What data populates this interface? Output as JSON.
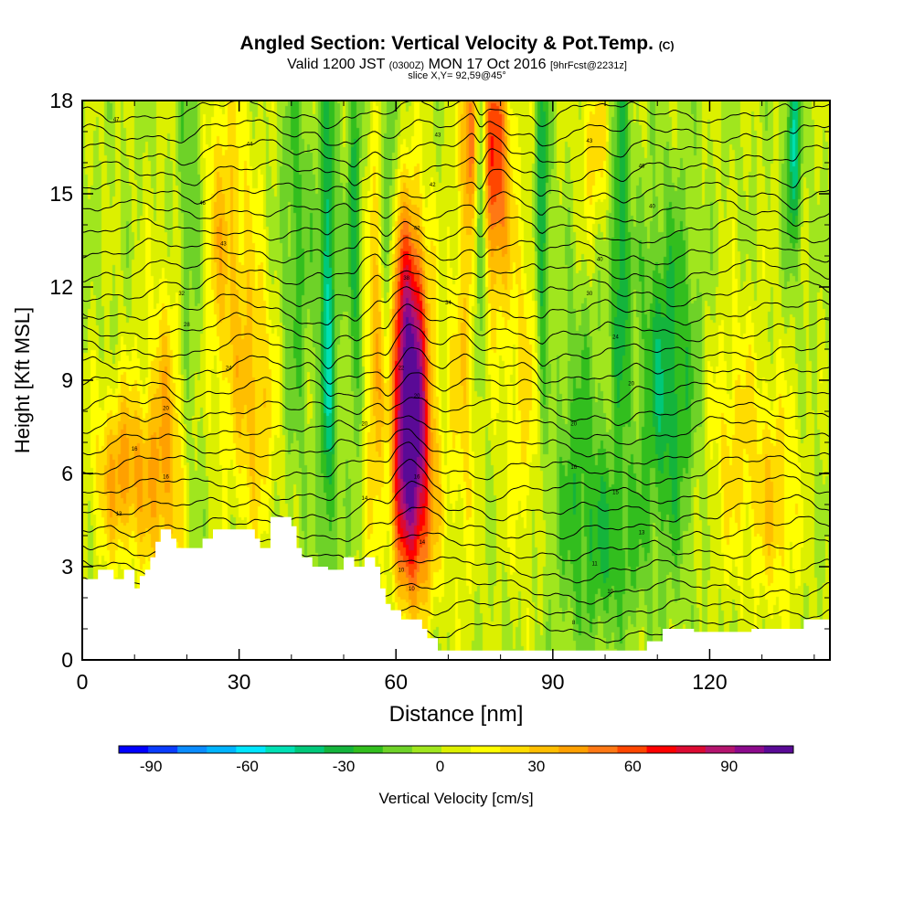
{
  "title": {
    "main": "Angled Section: Vertical Velocity & Pot.Temp.",
    "main_tag": "(C)",
    "valid_prefix": "Valid 1200 JST",
    "valid_z": "(0300Z)",
    "valid_date": "MON 17 Oct 2016",
    "valid_fcst": "[9hrFcst@2231z]",
    "slice": "slice X,Y= 92,59@45°"
  },
  "chart_data": {
    "type": "heatmap",
    "title": "Angled Section: Vertical Velocity & Pot.Temp.",
    "xlabel": "Distance [nm]",
    "ylabel": "Height [Kft MSL]",
    "xlim": [
      0,
      143
    ],
    "ylim": [
      0,
      18
    ],
    "x_ticks": [
      "0",
      "30",
      "60",
      "90",
      "120"
    ],
    "y_ticks": [
      "0",
      "3",
      "6",
      "9",
      "12",
      "15",
      "18"
    ],
    "colorbar": {
      "label": "Vertical Velocity [cm/s]",
      "ticks": [
        "-90",
        "-60",
        "-30",
        "0",
        "30",
        "60",
        "90"
      ],
      "min": -100,
      "max": 110,
      "colors": [
        "#0000ff",
        "#0a3cff",
        "#0a8cff",
        "#00b4ff",
        "#00e6ff",
        "#00e0b4",
        "#00c87a",
        "#14b43c",
        "#32be1e",
        "#6ed228",
        "#a0e61e",
        "#dcf000",
        "#ffff00",
        "#ffdc00",
        "#ffbe00",
        "#ffa000",
        "#ff7814",
        "#ff4600",
        "#ff0000",
        "#dc0a32",
        "#b4146e",
        "#8c0a8c",
        "#5a0a96"
      ]
    },
    "terrain_kft": [
      [
        0,
        2.6
      ],
      [
        3,
        2.6
      ],
      [
        3,
        2.9
      ],
      [
        6,
        2.9
      ],
      [
        6,
        2.6
      ],
      [
        8,
        2.6
      ],
      [
        8,
        2.9
      ],
      [
        10,
        2.9
      ],
      [
        10,
        2.3
      ],
      [
        11,
        2.3
      ],
      [
        11,
        2.7
      ],
      [
        12,
        2.7
      ],
      [
        12,
        2.9
      ],
      [
        13,
        2.9
      ],
      [
        13,
        3.3
      ],
      [
        14,
        3.3
      ],
      [
        14,
        3.8
      ],
      [
        15,
        3.8
      ],
      [
        15,
        4.2
      ],
      [
        17,
        4.2
      ],
      [
        17,
        3.9
      ],
      [
        18,
        3.9
      ],
      [
        18,
        3.6
      ],
      [
        23,
        3.6
      ],
      [
        23,
        3.9
      ],
      [
        25,
        3.9
      ],
      [
        25,
        4.2
      ],
      [
        33,
        4.2
      ],
      [
        33,
        3.9
      ],
      [
        34,
        3.9
      ],
      [
        34,
        3.6
      ],
      [
        36,
        3.6
      ],
      [
        36,
        4.6
      ],
      [
        40,
        4.6
      ],
      [
        40,
        4.3
      ],
      [
        41,
        4.3
      ],
      [
        41,
        3.6
      ],
      [
        42,
        3.6
      ],
      [
        42,
        3.3
      ],
      [
        44,
        3.3
      ],
      [
        44,
        3.0
      ],
      [
        47,
        3.0
      ],
      [
        47,
        2.9
      ],
      [
        50,
        2.9
      ],
      [
        50,
        3.3
      ],
      [
        52,
        3.3
      ],
      [
        52,
        3.0
      ],
      [
        54,
        3.0
      ],
      [
        54,
        3.3
      ],
      [
        56,
        3.3
      ],
      [
        56,
        3.0
      ],
      [
        57,
        3.0
      ],
      [
        57,
        2.3
      ],
      [
        58,
        2.3
      ],
      [
        58,
        1.8
      ],
      [
        59,
        1.8
      ],
      [
        59,
        1.6
      ],
      [
        61,
        1.6
      ],
      [
        61,
        1.3
      ],
      [
        65,
        1.3
      ],
      [
        65,
        1.0
      ],
      [
        66,
        1.0
      ],
      [
        66,
        0.7
      ],
      [
        68,
        0.7
      ],
      [
        68,
        0.3
      ],
      [
        108,
        0.3
      ],
      [
        108,
        0.6
      ],
      [
        111,
        0.6
      ],
      [
        111,
        1.0
      ],
      [
        117,
        1.0
      ],
      [
        117,
        0.9
      ],
      [
        128,
        0.9
      ],
      [
        128,
        1.0
      ],
      [
        138,
        1.0
      ],
      [
        138,
        1.3
      ],
      [
        143,
        1.3
      ]
    ],
    "updrafts": [
      {
        "x": 62.5,
        "y": 9.5,
        "sx": 2.6,
        "sy": 3.4,
        "w": 105
      },
      {
        "x": 63.5,
        "y": 5.0,
        "sx": 3.0,
        "sy": 2.5,
        "w": 60
      },
      {
        "x": 8,
        "y": 6.0,
        "sx": 4.0,
        "sy": 2.0,
        "w": 42
      },
      {
        "x": 16,
        "y": 6.5,
        "sx": 2.5,
        "sy": 4.0,
        "w": 35
      },
      {
        "x": 27,
        "y": 13.5,
        "sx": 4.0,
        "sy": 4.0,
        "w": 30
      },
      {
        "x": 33,
        "y": 8.0,
        "sx": 3.0,
        "sy": 3.0,
        "w": 28
      },
      {
        "x": 79,
        "y": 16.0,
        "sx": 2.0,
        "sy": 3.0,
        "w": 65
      },
      {
        "x": 74.5,
        "y": 17.0,
        "sx": 1.2,
        "sy": 2.0,
        "w": 50
      },
      {
        "x": 56,
        "y": 10.0,
        "sx": 1.3,
        "sy": 5.0,
        "w": 30
      },
      {
        "x": 73,
        "y": 10.0,
        "sx": 2.0,
        "sy": 5.0,
        "w": 25
      },
      {
        "x": 98,
        "y": 16.5,
        "sx": 2.0,
        "sy": 2.0,
        "w": 25
      },
      {
        "x": 125,
        "y": 7.0,
        "sx": 4.0,
        "sy": 3.0,
        "w": 22
      },
      {
        "x": 133,
        "y": 5.0,
        "sx": 3.0,
        "sy": 2.5,
        "w": 25
      },
      {
        "x": 85,
        "y": 9.0,
        "sx": 3.0,
        "sy": 4.0,
        "w": 22
      }
    ],
    "downdrafts": [
      {
        "x": 47,
        "y": 11.0,
        "sx": 1.2,
        "sy": 6.0,
        "w": -45
      },
      {
        "x": 52,
        "y": 14.0,
        "sx": 1.0,
        "sy": 5.0,
        "w": -30
      },
      {
        "x": 58.5,
        "y": 13.0,
        "sx": 1.0,
        "sy": 6.0,
        "w": -28
      },
      {
        "x": 76,
        "y": 15.0,
        "sx": 0.8,
        "sy": 3.5,
        "w": -50
      },
      {
        "x": 88,
        "y": 14.0,
        "sx": 1.0,
        "sy": 4.5,
        "w": -40
      },
      {
        "x": 103,
        "y": 14.0,
        "sx": 1.2,
        "sy": 4.5,
        "w": -35
      },
      {
        "x": 112,
        "y": 9.0,
        "sx": 4.0,
        "sy": 4.0,
        "w": -35
      },
      {
        "x": 136,
        "y": 16.5,
        "sx": 1.0,
        "sy": 2.5,
        "w": -45
      },
      {
        "x": 95,
        "y": 6.0,
        "sx": 4.0,
        "sy": 4.0,
        "w": -22
      },
      {
        "x": 21,
        "y": 14.0,
        "sx": 2.0,
        "sy": 5.0,
        "w": -25
      },
      {
        "x": 41,
        "y": 13.0,
        "sx": 2.0,
        "sy": 5.0,
        "w": -22
      },
      {
        "x": 102,
        "y": 3.5,
        "sx": 4.0,
        "sy": 2.0,
        "w": -20
      }
    ],
    "theta_isolines": {
      "count": 27,
      "y_start_kft": 1.0,
      "spacing_kft": 0.64
    },
    "theta_labels": [
      {
        "x": 6.5,
        "y": 17.4,
        "text": "47"
      },
      {
        "x": 32,
        "y": 16.6,
        "text": "44"
      },
      {
        "x": 68,
        "y": 16.9,
        "text": "43"
      },
      {
        "x": 97,
        "y": 16.7,
        "text": "43"
      },
      {
        "x": 107,
        "y": 15.9,
        "text": "46"
      },
      {
        "x": 23,
        "y": 14.7,
        "text": "46"
      },
      {
        "x": 67,
        "y": 15.3,
        "text": "42"
      },
      {
        "x": 109,
        "y": 14.6,
        "text": "40"
      },
      {
        "x": 64,
        "y": 13.9,
        "text": "42"
      },
      {
        "x": 27,
        "y": 13.4,
        "text": "43"
      },
      {
        "x": 99,
        "y": 12.9,
        "text": "40"
      },
      {
        "x": 62,
        "y": 12.3,
        "text": "38"
      },
      {
        "x": 19,
        "y": 11.8,
        "text": "32"
      },
      {
        "x": 97,
        "y": 11.8,
        "text": "30"
      },
      {
        "x": 70,
        "y": 11.5,
        "text": "34"
      },
      {
        "x": 20,
        "y": 10.8,
        "text": "28"
      },
      {
        "x": 102,
        "y": 10.4,
        "text": "24"
      },
      {
        "x": 28,
        "y": 9.4,
        "text": "24"
      },
      {
        "x": 61,
        "y": 9.4,
        "text": "22"
      },
      {
        "x": 105,
        "y": 8.9,
        "text": "20"
      },
      {
        "x": 64,
        "y": 8.5,
        "text": "20"
      },
      {
        "x": 16,
        "y": 8.1,
        "text": "20"
      },
      {
        "x": 94,
        "y": 7.6,
        "text": "20"
      },
      {
        "x": 54,
        "y": 7.6,
        "text": "20"
      },
      {
        "x": 10,
        "y": 6.8,
        "text": "16"
      },
      {
        "x": 94,
        "y": 6.2,
        "text": "16"
      },
      {
        "x": 16,
        "y": 5.9,
        "text": "16"
      },
      {
        "x": 64,
        "y": 5.9,
        "text": "16"
      },
      {
        "x": 102,
        "y": 5.4,
        "text": "15"
      },
      {
        "x": 54,
        "y": 5.2,
        "text": "14"
      },
      {
        "x": 7,
        "y": 4.7,
        "text": "13"
      },
      {
        "x": 107,
        "y": 4.1,
        "text": "13"
      },
      {
        "x": 65,
        "y": 3.8,
        "text": "14"
      },
      {
        "x": 98,
        "y": 3.1,
        "text": "11"
      },
      {
        "x": 61,
        "y": 2.9,
        "text": "10"
      },
      {
        "x": 101,
        "y": 2.2,
        "text": "10"
      },
      {
        "x": 63,
        "y": 2.3,
        "text": "10"
      },
      {
        "x": 94,
        "y": 1.2,
        "text": "8"
      }
    ]
  }
}
